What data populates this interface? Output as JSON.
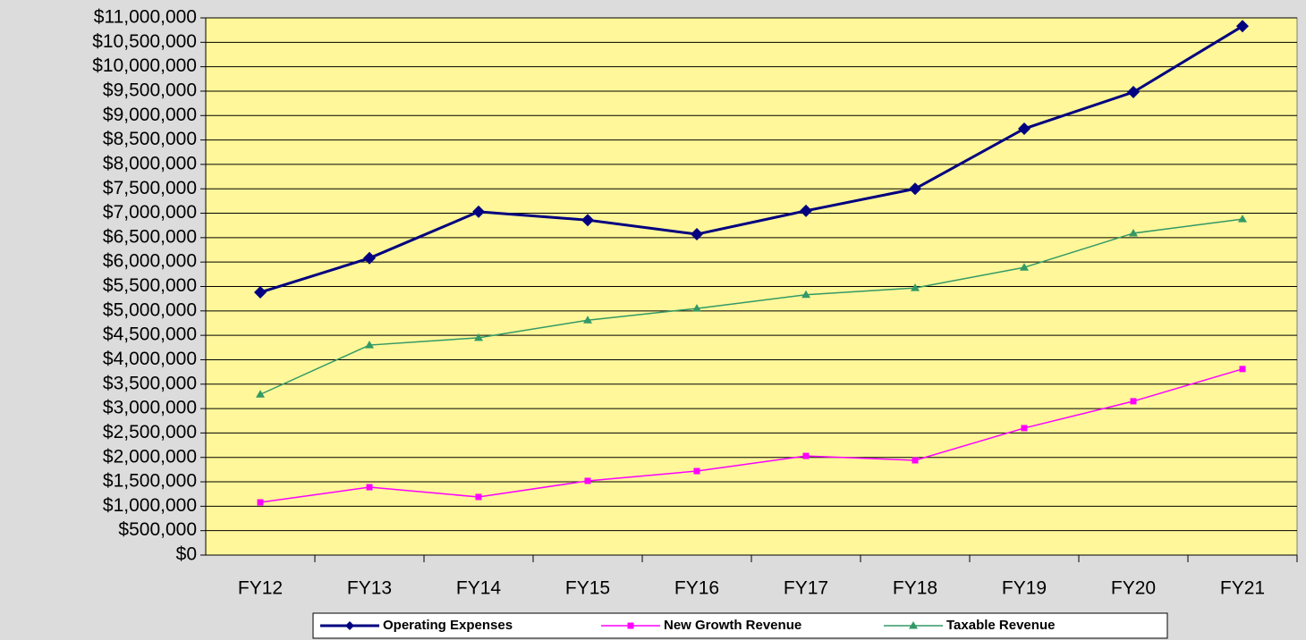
{
  "chart_data": {
    "type": "line",
    "categories": [
      "FY12",
      "FY13",
      "FY14",
      "FY15",
      "FY16",
      "FY17",
      "FY18",
      "FY19",
      "FY20",
      "FY21"
    ],
    "series": [
      {
        "name": "Operating Expenses",
        "color": "#000080",
        "marker": "diamond",
        "values": [
          5380000,
          6080000,
          7030000,
          6860000,
          6570000,
          7050000,
          7500000,
          8730000,
          9480000,
          10830000
        ]
      },
      {
        "name": "New Growth Revenue",
        "color": "#ff00ff",
        "marker": "square",
        "values": [
          1080000,
          1390000,
          1190000,
          1520000,
          1720000,
          2030000,
          1940000,
          2600000,
          3150000,
          3810000
        ]
      },
      {
        "name": "Taxable Revenue",
        "color": "#339966",
        "marker": "triangle",
        "values": [
          3290000,
          4300000,
          4450000,
          4810000,
          5050000,
          5330000,
          5470000,
          5890000,
          6590000,
          6880000
        ]
      }
    ],
    "ylim": [
      0,
      11000000
    ],
    "yticks": [
      {
        "value": 0,
        "label": "$0"
      },
      {
        "value": 500000,
        "label": "$500,000"
      },
      {
        "value": 1000000,
        "label": "$1,000,000"
      },
      {
        "value": 1500000,
        "label": "$1,500,000"
      },
      {
        "value": 2000000,
        "label": "$2,000,000"
      },
      {
        "value": 2500000,
        "label": "$2,500,000"
      },
      {
        "value": 3000000,
        "label": "$3,000,000"
      },
      {
        "value": 3500000,
        "label": "$3,500,000"
      },
      {
        "value": 4000000,
        "label": "$4,000,000"
      },
      {
        "value": 4500000,
        "label": "$4,500,000"
      },
      {
        "value": 5000000,
        "label": "$5,000,000"
      },
      {
        "value": 5500000,
        "label": "$5,500,000"
      },
      {
        "value": 6000000,
        "label": "$6,000,000"
      },
      {
        "value": 6500000,
        "label": "$6,500,000"
      },
      {
        "value": 7000000,
        "label": "$7,000,000"
      },
      {
        "value": 7500000,
        "label": "$7,500,000"
      },
      {
        "value": 8000000,
        "label": "$8,000,000"
      },
      {
        "value": 8500000,
        "label": "$8,500,000"
      },
      {
        "value": 9000000,
        "label": "$9,000,000"
      },
      {
        "value": 9500000,
        "label": "$9,500,000"
      },
      {
        "value": 10000000,
        "label": "$10,000,000"
      },
      {
        "value": 10500000,
        "label": "$10,500,000"
      },
      {
        "value": 11000000,
        "label": "$11,000,000"
      }
    ],
    "grid": true,
    "legend": "bottom"
  }
}
